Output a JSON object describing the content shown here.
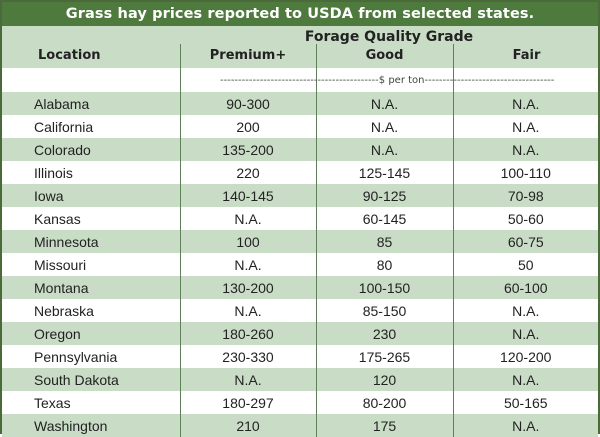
{
  "title": "Grass hay prices reported to USDA from selected states.",
  "header": {
    "group": "Forage Quality Grade",
    "columns": [
      "Location",
      "Premium+",
      "Good",
      "Fair"
    ]
  },
  "units": "$ per ton",
  "rows": [
    {
      "location": "Alabama",
      "premium": "90-300",
      "good": "N.A.",
      "fair": "N.A."
    },
    {
      "location": "California",
      "premium": "200",
      "good": "N.A.",
      "fair": "N.A."
    },
    {
      "location": "Colorado",
      "premium": "135-200",
      "good": "N.A.",
      "fair": "N.A."
    },
    {
      "location": "Illinois",
      "premium": "220",
      "good": "125-145",
      "fair": "100-110"
    },
    {
      "location": "Iowa",
      "premium": "140-145",
      "good": "90-125",
      "fair": "70-98"
    },
    {
      "location": "Kansas",
      "premium": "N.A.",
      "good": "60-145",
      "fair": "50-60"
    },
    {
      "location": "Minnesota",
      "premium": "100",
      "good": "85",
      "fair": "60-75"
    },
    {
      "location": "Missouri",
      "premium": "N.A.",
      "good": "80",
      "fair": "50"
    },
    {
      "location": "Montana",
      "premium": "130-200",
      "good": "100-150",
      "fair": "60-100"
    },
    {
      "location": "Nebraska",
      "premium": "N.A.",
      "good": "85-150",
      "fair": "N.A."
    },
    {
      "location": "Oregon",
      "premium": "180-260",
      "good": "230",
      "fair": "N.A."
    },
    {
      "location": "Pennsylvania",
      "premium": "230-330",
      "good": "175-265",
      "fair": "120-200"
    },
    {
      "location": "South Dakota",
      "premium": "N.A.",
      "good": "120",
      "fair": "N.A."
    },
    {
      "location": "Texas",
      "premium": "180-297",
      "good": "80-200",
      "fair": "50-165"
    },
    {
      "location": "Washington",
      "premium": "210",
      "good": "175",
      "fair": "N.A."
    }
  ]
}
